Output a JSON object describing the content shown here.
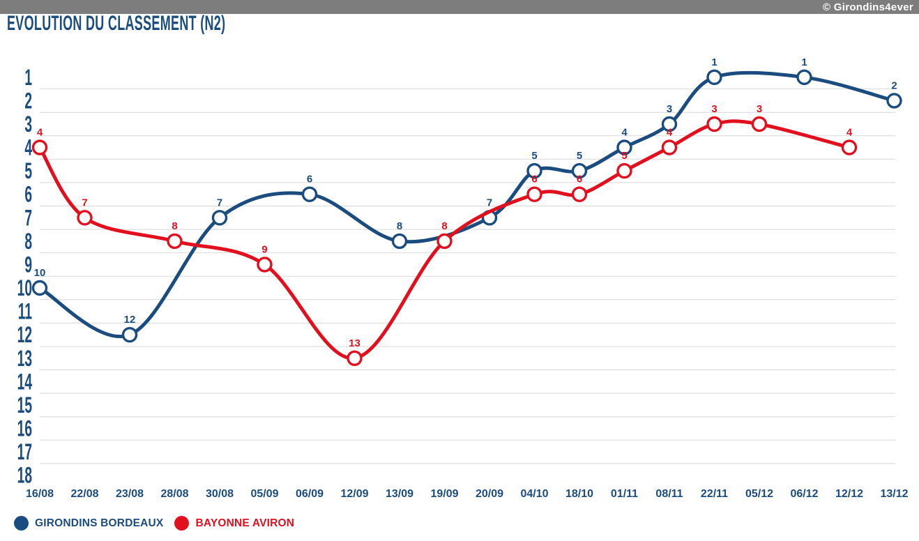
{
  "header": {
    "credit": "© Girondins4ever",
    "title": "EVOLUTION DU CLASSEMENT (N2)"
  },
  "colors": {
    "blue": "#1b4c80",
    "red": "#e2101e",
    "grid": "#d8d8d8",
    "topbar": "#7d7d7d",
    "marker_fill": "#ffffff"
  },
  "chart_data": {
    "type": "line",
    "title": "EVOLUTION DU CLASSEMENT (N2)",
    "xlabel": "",
    "ylabel": "",
    "x_categories": [
      "16/08",
      "22/08",
      "23/08",
      "28/08",
      "30/08",
      "05/09",
      "06/09",
      "12/09",
      "13/09",
      "19/09",
      "20/09",
      "04/10",
      "18/10",
      "01/11",
      "08/11",
      "22/11",
      "05/12",
      "06/12",
      "12/12",
      "13/12"
    ],
    "y_axis": {
      "min": 1,
      "max": 18,
      "inverted": true,
      "tick_step": 1
    },
    "grid": true,
    "smoothed": true,
    "data_labels": true,
    "legend_position": "bottom-left",
    "series": [
      {
        "name": "GIRONDINS BORDEAUX",
        "color": "#1b4c80",
        "values": [
          10,
          null,
          12,
          null,
          7,
          null,
          6,
          null,
          8,
          null,
          7,
          5,
          5,
          4,
          3,
          1,
          null,
          1,
          null,
          2
        ]
      },
      {
        "name": "BAYONNE AVIRON",
        "color": "#e2101e",
        "values": [
          4,
          7,
          null,
          8,
          null,
          9,
          null,
          13,
          null,
          8,
          null,
          6,
          6,
          5,
          4,
          3,
          3,
          null,
          4,
          null
        ]
      }
    ]
  },
  "legend": {
    "items": [
      {
        "label": "GIRONDINS BORDEAUX",
        "color": "#1b4c80"
      },
      {
        "label": "BAYONNE AVIRON",
        "color": "#e2101e"
      }
    ]
  }
}
